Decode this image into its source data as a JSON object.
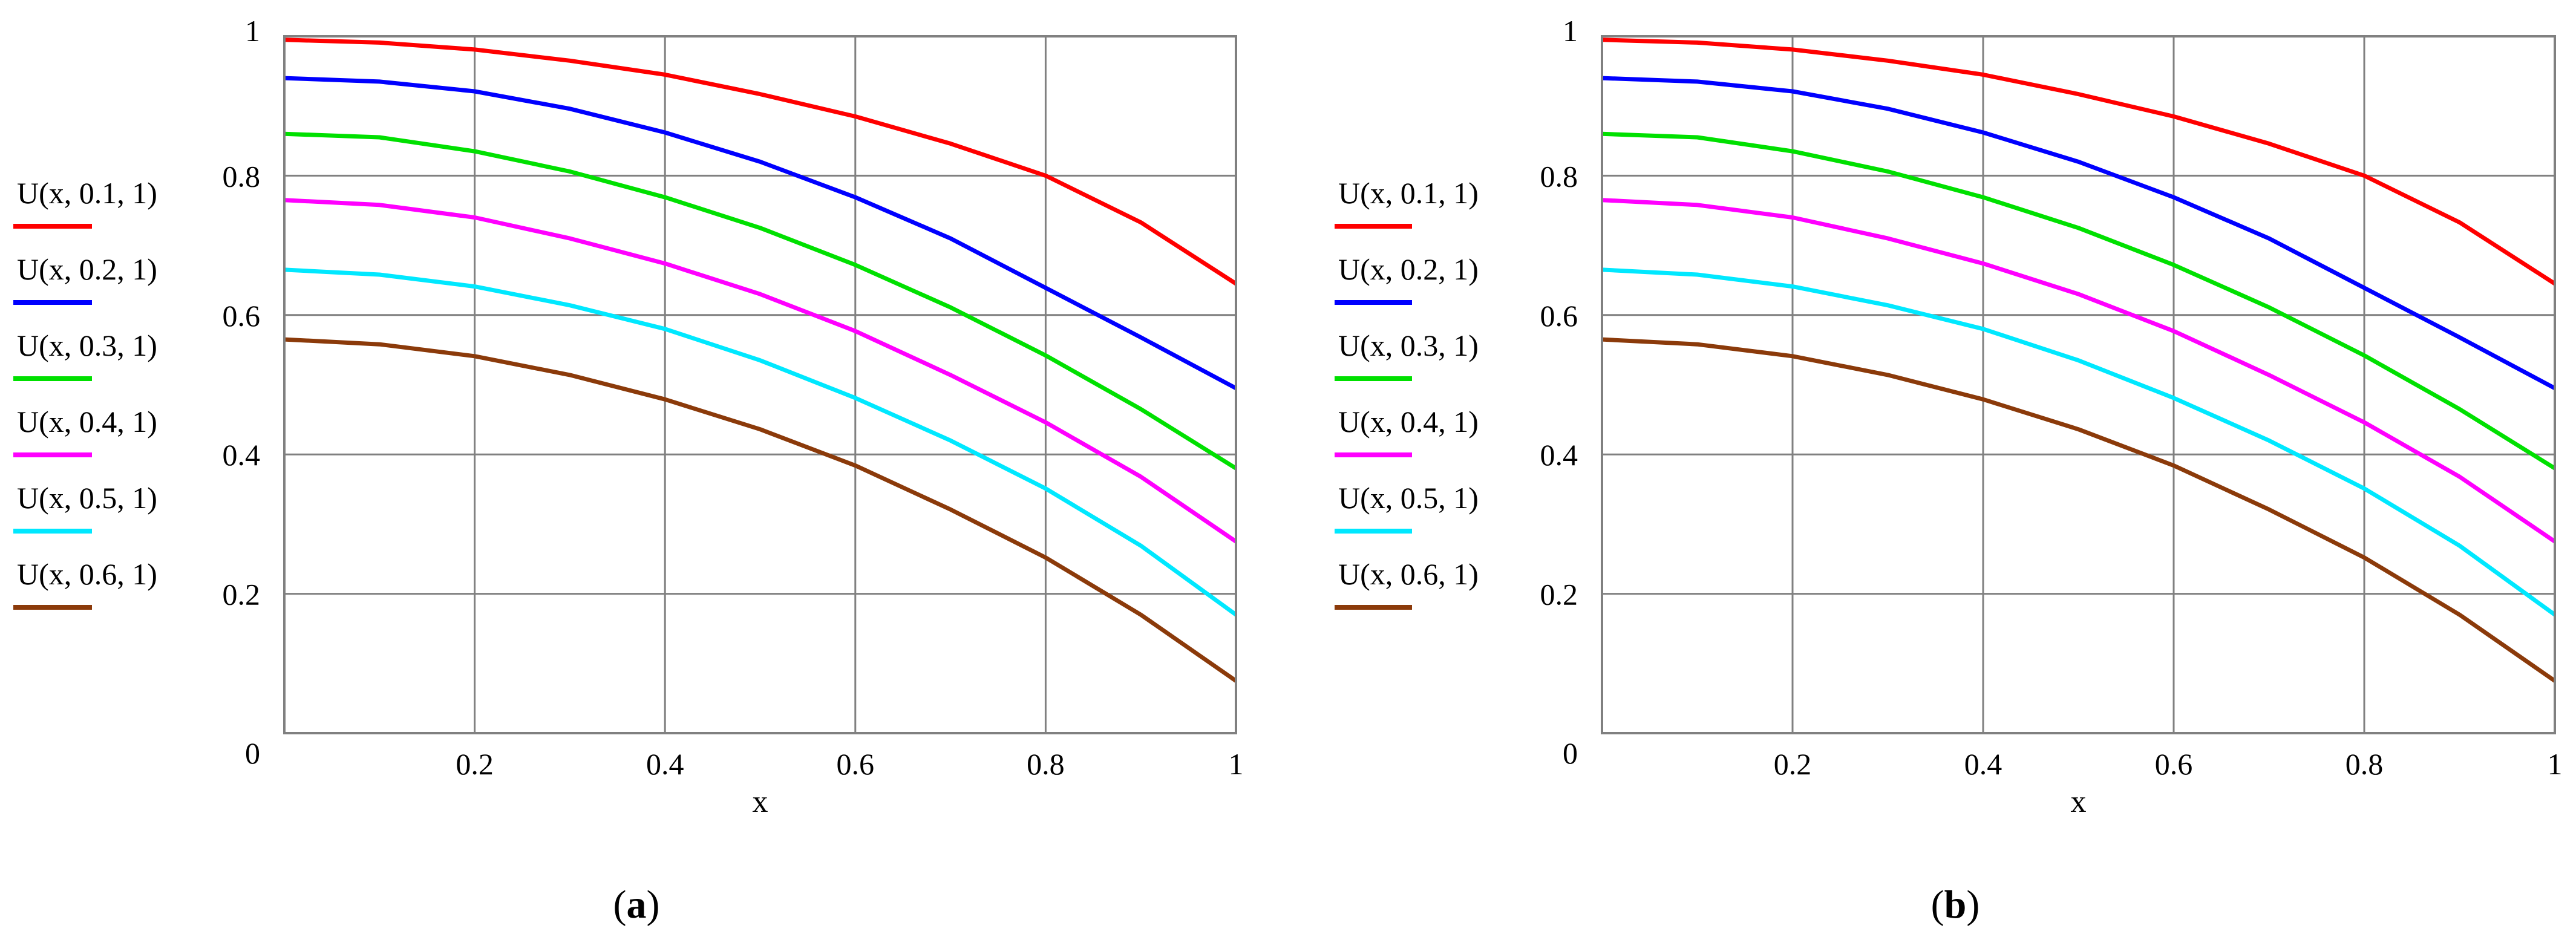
{
  "chart_data": [
    {
      "type": "line",
      "title": "",
      "caption": "(a)",
      "caption_letter": "a",
      "xlabel": "x",
      "ylabel": "",
      "xlim": [
        0,
        1
      ],
      "ylim": [
        0,
        1
      ],
      "grid": true,
      "legend_position": "left",
      "x_ticks": [
        {
          "value": 0.2,
          "label": "0.2"
        },
        {
          "value": 0.4,
          "label": "0.4"
        },
        {
          "value": 0.6,
          "label": "0.6"
        },
        {
          "value": 0.8,
          "label": "0.8"
        },
        {
          "value": 1,
          "label": "1"
        }
      ],
      "y_ticks": [
        {
          "value": 0,
          "label": "0"
        },
        {
          "value": 0.2,
          "label": "0.2"
        },
        {
          "value": 0.4,
          "label": "0.4"
        },
        {
          "value": 0.6,
          "label": "0.6"
        },
        {
          "value": 0.8,
          "label": "0.8"
        },
        {
          "value": 1,
          "label": "1"
        }
      ],
      "x": [
        0,
        0.1,
        0.2,
        0.3,
        0.4,
        0.5,
        0.6,
        0.7,
        0.8,
        0.9,
        1.0
      ],
      "series": [
        {
          "name": "U(x, 0.1, 1)",
          "color": "#ff0000",
          "values": [
            0.995,
            0.991,
            0.981,
            0.965,
            0.945,
            0.917,
            0.885,
            0.846,
            0.8,
            0.733,
            0.645
          ]
        },
        {
          "name": "U(x, 0.2, 1)",
          "color": "#0000ff",
          "values": [
            0.94,
            0.935,
            0.921,
            0.896,
            0.862,
            0.82,
            0.769,
            0.71,
            0.639,
            0.568,
            0.495
          ]
        },
        {
          "name": "U(x, 0.3, 1)",
          "color": "#00e000",
          "values": [
            0.86,
            0.855,
            0.835,
            0.806,
            0.769,
            0.725,
            0.672,
            0.611,
            0.542,
            0.465,
            0.38
          ]
        },
        {
          "name": "U(x, 0.4, 1)",
          "color": "#ff00ff",
          "values": [
            0.765,
            0.758,
            0.74,
            0.71,
            0.674,
            0.63,
            0.577,
            0.514,
            0.446,
            0.368,
            0.275
          ]
        },
        {
          "name": "U(x, 0.5, 1)",
          "color": "#00e8ff",
          "values": [
            0.665,
            0.658,
            0.641,
            0.614,
            0.58,
            0.535,
            0.481,
            0.42,
            0.351,
            0.269,
            0.17
          ]
        },
        {
          "name": "U(x, 0.6, 1)",
          "color": "#8b3a0a",
          "values": [
            0.565,
            0.558,
            0.541,
            0.514,
            0.479,
            0.436,
            0.384,
            0.321,
            0.252,
            0.17,
            0.075
          ]
        }
      ]
    },
    {
      "type": "line",
      "title": "",
      "caption": "(b)",
      "caption_letter": "b",
      "xlabel": "x",
      "ylabel": "",
      "xlim": [
        0,
        1
      ],
      "ylim": [
        0,
        1
      ],
      "grid": true,
      "legend_position": "left",
      "x_ticks": [
        {
          "value": 0.2,
          "label": "0.2"
        },
        {
          "value": 0.4,
          "label": "0.4"
        },
        {
          "value": 0.6,
          "label": "0.6"
        },
        {
          "value": 0.8,
          "label": "0.8"
        },
        {
          "value": 1,
          "label": "1"
        }
      ],
      "y_ticks": [
        {
          "value": 0,
          "label": "0"
        },
        {
          "value": 0.2,
          "label": "0.2"
        },
        {
          "value": 0.4,
          "label": "0.4"
        },
        {
          "value": 0.6,
          "label": "0.6"
        },
        {
          "value": 0.8,
          "label": "0.8"
        },
        {
          "value": 1,
          "label": "1"
        }
      ],
      "x": [
        0,
        0.1,
        0.2,
        0.3,
        0.4,
        0.5,
        0.6,
        0.7,
        0.8,
        0.9,
        1.0
      ],
      "series": [
        {
          "name": "U(x, 0.1, 1)",
          "color": "#ff0000",
          "values": [
            0.995,
            0.991,
            0.981,
            0.965,
            0.945,
            0.917,
            0.885,
            0.846,
            0.8,
            0.733,
            0.645
          ]
        },
        {
          "name": "U(x, 0.2, 1)",
          "color": "#0000ff",
          "values": [
            0.94,
            0.935,
            0.921,
            0.896,
            0.862,
            0.82,
            0.769,
            0.71,
            0.639,
            0.568,
            0.495
          ]
        },
        {
          "name": "U(x, 0.3, 1)",
          "color": "#00e000",
          "values": [
            0.86,
            0.855,
            0.835,
            0.806,
            0.769,
            0.725,
            0.672,
            0.611,
            0.542,
            0.465,
            0.38
          ]
        },
        {
          "name": "U(x, 0.4, 1)",
          "color": "#ff00ff",
          "values": [
            0.765,
            0.758,
            0.74,
            0.71,
            0.674,
            0.63,
            0.577,
            0.514,
            0.446,
            0.368,
            0.275
          ]
        },
        {
          "name": "U(x, 0.5, 1)",
          "color": "#00e8ff",
          "values": [
            0.665,
            0.658,
            0.641,
            0.614,
            0.58,
            0.535,
            0.481,
            0.42,
            0.351,
            0.269,
            0.17
          ]
        },
        {
          "name": "U(x, 0.6, 1)",
          "color": "#8b3a0a",
          "values": [
            0.565,
            0.558,
            0.541,
            0.514,
            0.479,
            0.436,
            0.384,
            0.321,
            0.252,
            0.17,
            0.075
          ]
        }
      ]
    }
  ]
}
